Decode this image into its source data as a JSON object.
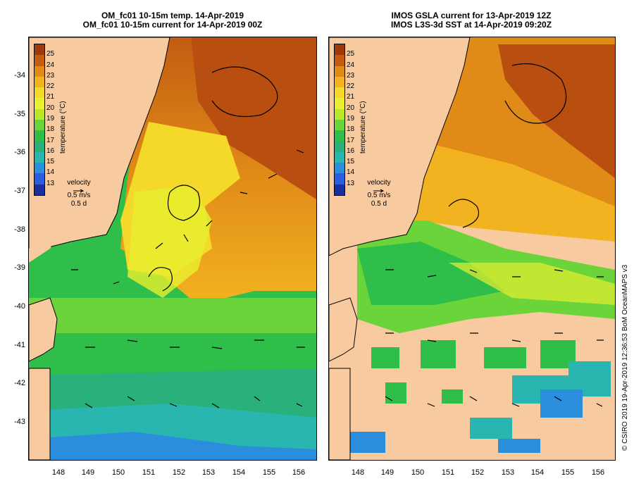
{
  "panels": [
    {
      "id": "left",
      "title_line1": "OM_fc01 10-15m temp. 14-Apr-2019",
      "title_line2": "OM_fc01 10-15m current for 14-Apr-2019 00Z"
    },
    {
      "id": "right",
      "title_line1": "IMOS GSLA current for 13-Apr-2019 12Z",
      "title_line2": "IMOS L3S-3d SST at 14-Apr-2019 09:20Z"
    }
  ],
  "axes": {
    "latitudes": [
      "-34",
      "-35",
      "-36",
      "-37",
      "-38",
      "-39",
      "-40",
      "-41",
      "-42",
      "-43"
    ],
    "longitudes": [
      "148",
      "149",
      "150",
      "151",
      "152",
      "153",
      "154",
      "155",
      "156"
    ]
  },
  "colorbar": {
    "label": "temperature (°C)",
    "ticks": [
      "25",
      "24",
      "23",
      "22",
      "21",
      "20",
      "19",
      "18",
      "17",
      "16",
      "15",
      "14",
      "13"
    ],
    "colors": [
      "#9c3a0e",
      "#c25c12",
      "#e08a18",
      "#f2b320",
      "#f4d82a",
      "#e8f030",
      "#b8e828",
      "#6ad43a",
      "#30be4a",
      "#2ab07a",
      "#2ab6b0",
      "#2a8edc",
      "#2a5ee0",
      "#1a2fa0"
    ]
  },
  "velocity_legend": {
    "title": "velocity",
    "speed": "0.5 m/s",
    "duration": "0.5 d"
  },
  "credit": "© CSIRO 2019   19-Apr-2019 12:36:53 BoM OceanMAPS v3"
}
